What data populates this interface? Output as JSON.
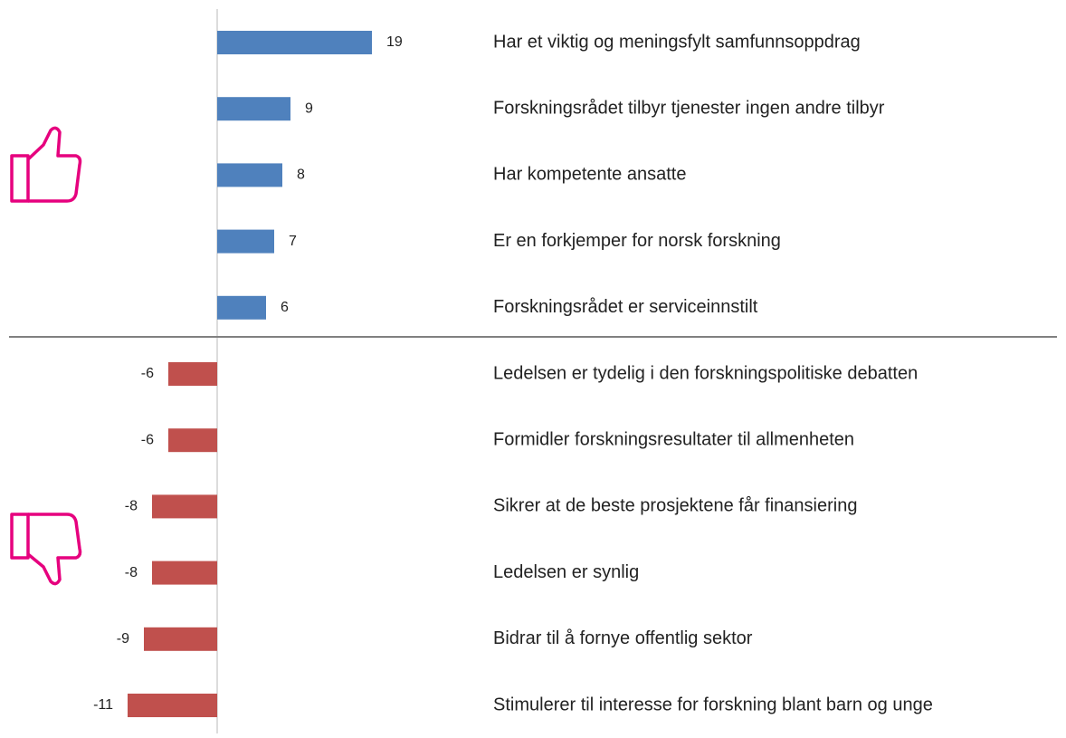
{
  "chart_data": {
    "type": "bar",
    "orientation": "horizontal",
    "categories": [
      "Har et viktig og meningsfylt samfunnsoppdrag",
      "Forskningsrådet tilbyr tjenester ingen andre tilbyr",
      "Har kompetente ansatte",
      "Er en forkjemper for norsk forskning",
      "Forskningsrådet er serviceinnstilt",
      "Ledelsen er tydelig i den forskningspolitiske debatten",
      "Formidler forskningsresultater til allmenheten",
      "Sikrer at de beste prosjektene får finansiering",
      "Ledelsen er synlig",
      "Bidrar til å fornye offentlig sektor",
      "Stimulerer til interesse for forskning blant barn og unge"
    ],
    "values": [
      19,
      9,
      8,
      7,
      6,
      -6,
      -6,
      -8,
      -8,
      -9,
      -11
    ],
    "positive_color": "#4f81bd",
    "negative_color": "#c0504d"
  }
}
